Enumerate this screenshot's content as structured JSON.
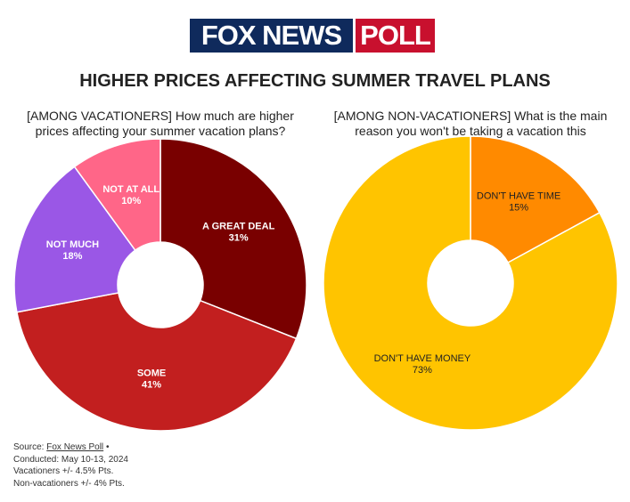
{
  "header": {
    "logo_left": "FOX NEWS",
    "logo_right": "POLL",
    "title": "HIGHER PRICES AFFECTING SUMMER TRAVEL PLANS"
  },
  "chart_data": [
    {
      "type": "donut",
      "title": "[AMONG VACATIONERS] How much are higher prices affecting your summer vacation plans?",
      "categories": [
        "A GREAT DEAL",
        "SOME",
        "NOT MUCH",
        "NOT AT ALL"
      ],
      "values": [
        31,
        41,
        18,
        10
      ],
      "value_labels": [
        "31%",
        "41%",
        "18%",
        "10%"
      ],
      "colors": [
        "#790000",
        "#c21f1f",
        "#9a57e6",
        "#ff6688"
      ],
      "label_color": "#ffffff"
    },
    {
      "type": "donut",
      "title": "[AMONG NON-VACATIONERS] What is the main reason you won't be taking a vacation this summer?",
      "categories": [
        "DON'T HAVE TIME",
        "DON'T HAVE MONEY"
      ],
      "values": [
        15,
        73
      ],
      "value_labels": [
        "15%",
        "73%"
      ],
      "colors": [
        "#ff8a00",
        "#ffc400"
      ],
      "label_color": "#222222"
    }
  ],
  "footer": {
    "source_label": "Source:",
    "source_link": "Fox News Poll",
    "separator": "•",
    "lines": [
      "Conducted: May 10-13, 2024",
      "Vacationers +/- 4.5% Pts.",
      "Non-vacationers +/- 4% Pts."
    ]
  }
}
